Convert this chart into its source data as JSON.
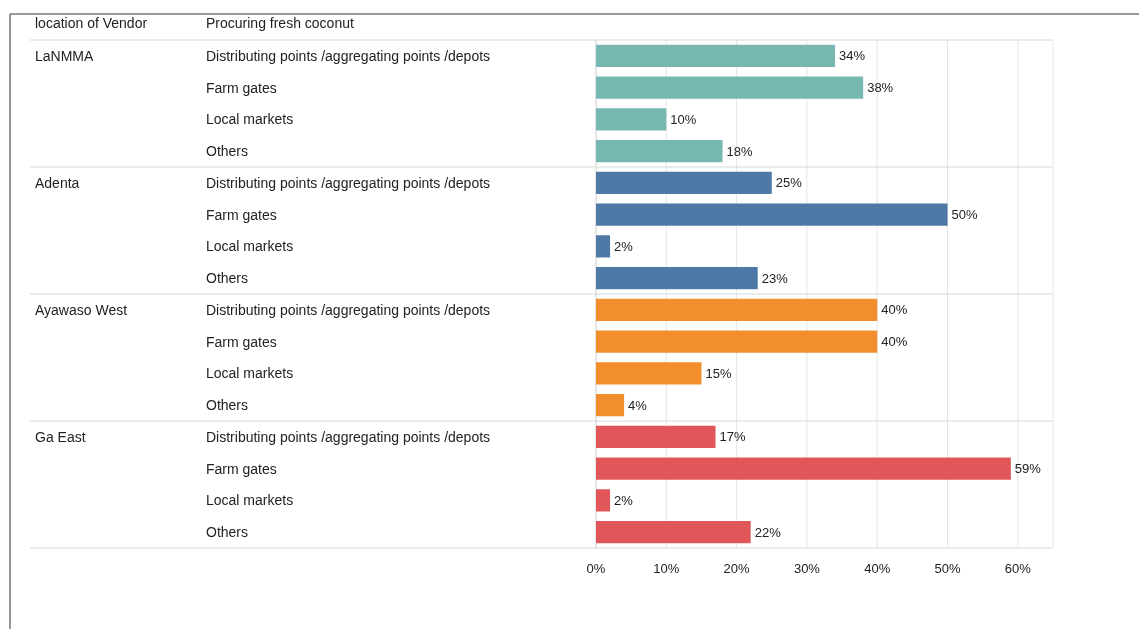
{
  "chart_data": {
    "type": "bar",
    "orientation": "horizontal",
    "legend_title": "location of Vendor",
    "ylabel": "Procuring fresh coconut",
    "categories": [
      "Distributing points /aggregating points /depots",
      "Farm gates",
      "Local markets",
      "Others",
      "Distributing points /aggregating points /depots",
      "Farm gates",
      "Local markets",
      "Others",
      "Distributing points /aggregating points /depots",
      "Farm gates",
      "Local markets",
      "Others",
      "Distributing points /aggregating points /depots",
      "Farm gates",
      "Local markets",
      "Others"
    ],
    "series": [
      {
        "color": "#76b7b2",
        "values": [
          34,
          38,
          10,
          18,
          null,
          null,
          null,
          null,
          null,
          null,
          null,
          null,
          null,
          null,
          null,
          null
        ],
        "value_labels": [
          "34%",
          "38%",
          "10%",
          "18%",
          null,
          null,
          null,
          null,
          null,
          null,
          null,
          null,
          null,
          null,
          null,
          null
        ]
      },
      {
        "color": "#4e79a7",
        "values": [
          null,
          null,
          null,
          null,
          25,
          50,
          2,
          23,
          null,
          null,
          null,
          null,
          null,
          null,
          null,
          null
        ],
        "value_labels": [
          null,
          null,
          null,
          null,
          "25%",
          "50%",
          "2%",
          "23%",
          null,
          null,
          null,
          null,
          null,
          null,
          null,
          null
        ]
      },
      {
        "color": "#f28e2b",
        "values": [
          null,
          null,
          null,
          null,
          null,
          null,
          null,
          null,
          40,
          40,
          15,
          4,
          null,
          null,
          null,
          null
        ],
        "value_labels": [
          null,
          null,
          null,
          null,
          null,
          null,
          null,
          null,
          "40%",
          "40%",
          "15%",
          "4%",
          null,
          null,
          null,
          null
        ]
      },
      {
        "color": "#e15759",
        "values": [
          null,
          null,
          null,
          null,
          null,
          null,
          null,
          null,
          null,
          null,
          null,
          null,
          17,
          59,
          2,
          22
        ],
        "value_labels": [
          null,
          null,
          null,
          null,
          null,
          null,
          null,
          null,
          null,
          null,
          null,
          null,
          "17%",
          "59%",
          "2%",
          "22%"
        ]
      }
    ],
    "xlim": [
      0,
      65
    ],
    "xticks": [
      {
        "value": 0,
        "label": "0%"
      },
      {
        "value": 10,
        "label": "10%"
      },
      {
        "value": 20,
        "label": "20%"
      },
      {
        "value": 30,
        "label": "30%"
      },
      {
        "value": 40,
        "label": "40%"
      },
      {
        "value": 50,
        "label": "50%"
      },
      {
        "value": 60,
        "label": "60%"
      }
    ],
    "grid": "x",
    "annotations": [
      "LaNMMA",
      "Adenta",
      "Ayawaso West",
      "Ga East"
    ]
  }
}
